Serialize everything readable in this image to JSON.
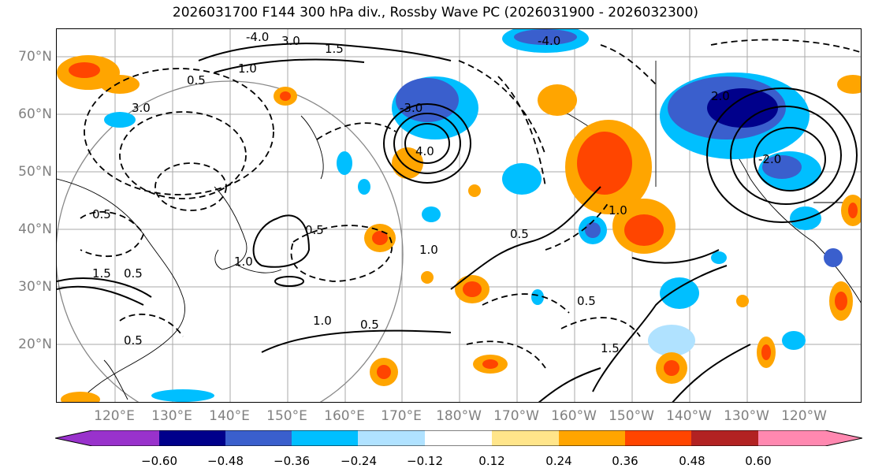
{
  "title": "2026031700 F144 300 hPa div., Rossby Wave PC (2026031900 - 2026032300)",
  "lat_labels": [
    "70°N",
    "60°N",
    "50°N",
    "40°N",
    "30°N",
    "20°N"
  ],
  "lon_labels": [
    "120°E",
    "130°E",
    "140°E",
    "150°E",
    "160°E",
    "170°E",
    "180°W",
    "170°W",
    "160°W",
    "150°W",
    "140°W",
    "130°W",
    "120°W"
  ],
  "contour_labels": [
    "-4.0",
    "3.0",
    "-4.0",
    "-3.0",
    "-2.0",
    "1.0",
    "1.5",
    "0.5",
    "3.0",
    "4.0",
    "2.0",
    "1.0",
    "0.5",
    "0.5",
    "1.0",
    "0.5",
    "1.0",
    "1.5",
    "0.5",
    "0.5",
    "1.0",
    "0.5",
    "0.5",
    "1.5"
  ],
  "colorbar": {
    "colors": [
      "#9932CC",
      "#00008B",
      "#3A5FCD",
      "#00BFFF",
      "#B0E2FF",
      "#FFFFFF",
      "#FFE58A",
      "#FFA500",
      "#FF4500",
      "#B22222",
      "#FF88B0"
    ],
    "ticks": [
      "−0.60",
      "−0.48",
      "−0.36",
      "−0.24",
      "−0.12",
      "0.12",
      "0.24",
      "0.36",
      "0.48",
      "0.60"
    ]
  }
}
